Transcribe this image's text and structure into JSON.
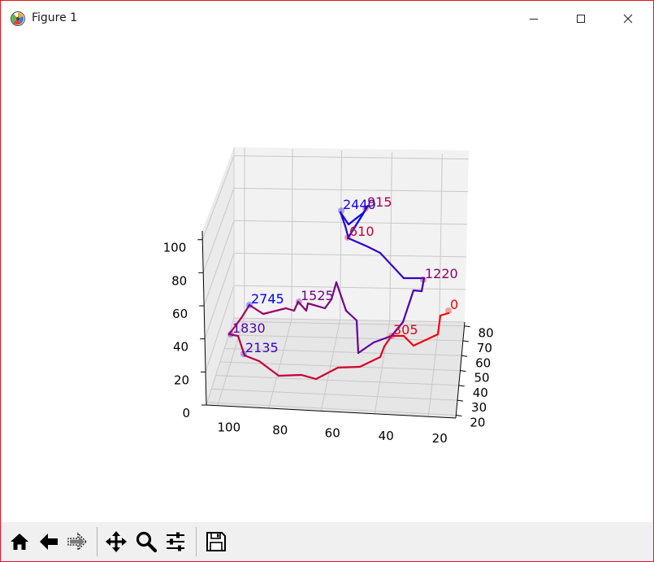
{
  "window": {
    "title": "Figure 1",
    "icons": {
      "app": "matplotlib-icon",
      "minimize": "minimize-icon",
      "maximize": "maximize-icon",
      "close": "close-icon"
    },
    "border_color": "#e81123"
  },
  "toolbar": {
    "buttons": [
      {
        "name": "home-button",
        "icon": "home-icon"
      },
      {
        "name": "back-button",
        "icon": "arrow-left-icon"
      },
      {
        "name": "forward-button",
        "icon": "arrow-right-icon"
      },
      {
        "name": "pan-button",
        "icon": "move-icon"
      },
      {
        "name": "zoom-button",
        "icon": "magnifier-icon"
      },
      {
        "name": "configure-subplots-button",
        "icon": "sliders-icon"
      },
      {
        "name": "save-button",
        "icon": "floppy-disk-icon"
      }
    ]
  },
  "chart_data": {
    "type": "line",
    "projection": "3d",
    "title": "",
    "grid": true,
    "color_gradient": {
      "start": "#ff0000",
      "end": "#0000ff"
    },
    "x_axis": {
      "ticks": [
        "100",
        "80",
        "60",
        "40",
        "20"
      ],
      "range": [
        10,
        105
      ]
    },
    "y_axis": {
      "ticks": [
        "20",
        "30",
        "40",
        "50",
        "60",
        "70",
        "80"
      ],
      "range": [
        20,
        90
      ]
    },
    "z_axis": {
      "ticks": [
        "0",
        "20",
        "40",
        "60",
        "80",
        "100"
      ],
      "range": [
        0,
        105
      ]
    },
    "labeled_points": [
      {
        "label": "0",
        "index": 0
      },
      {
        "label": "305",
        "index": 305
      },
      {
        "label": "610",
        "index": 610
      },
      {
        "label": "915",
        "index": 915
      },
      {
        "label": "1220",
        "index": 1220
      },
      {
        "label": "1525",
        "index": 1525
      },
      {
        "label": "1830",
        "index": 1830
      },
      {
        "label": "2135",
        "index": 2135
      },
      {
        "label": "2440",
        "index": 2440
      },
      {
        "label": "2745",
        "index": 2745
      }
    ]
  }
}
